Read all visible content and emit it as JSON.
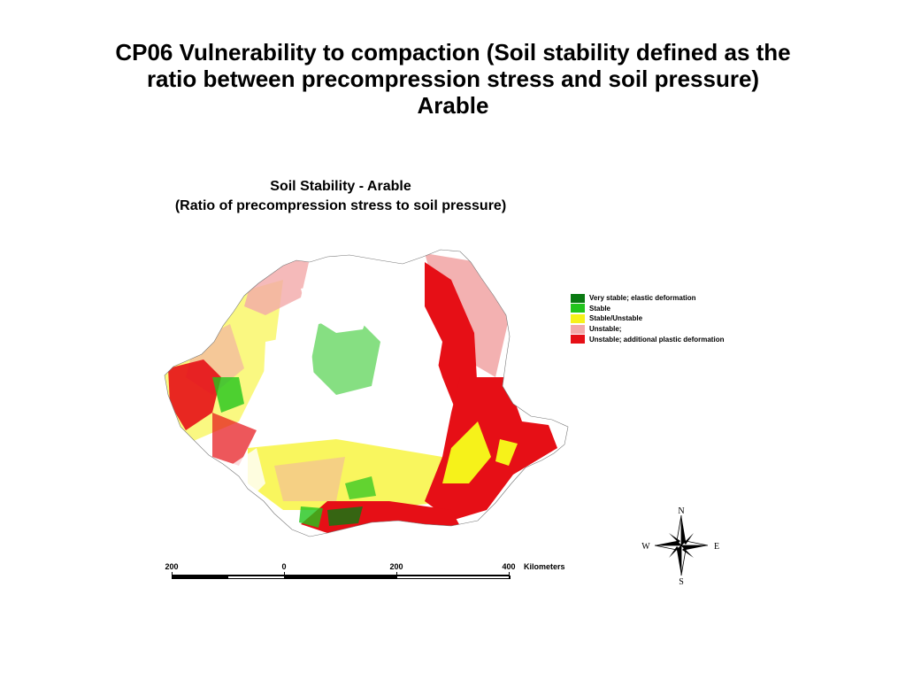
{
  "slide": {
    "title_line1": "CP06 Vulnerability to compaction (Soil stability defined as the",
    "title_line2": "ratio between precompression stress and soil pressure)",
    "title_line3": "Arable"
  },
  "map": {
    "title_line1": "Soil Stability - Arable",
    "title_line2": "(Ratio of precompression stress to soil pressure)",
    "legend": [
      {
        "label": "Very stable; elastic deformation",
        "color": "#0a7a12"
      },
      {
        "label": "Stable",
        "color": "#22c51c"
      },
      {
        "label": "Stable/Unstable",
        "color": "#f6f21a"
      },
      {
        "label": "Unstable;",
        "color": "#f2a9a9"
      },
      {
        "label": "Unstable; additional plastic deformation",
        "color": "#e60f16"
      }
    ],
    "scale_bar": {
      "labels": [
        "200",
        "0",
        "200",
        "400"
      ],
      "units": "Kilometers"
    },
    "compass": {
      "n": "N",
      "s": "S",
      "e": "E",
      "w": "W"
    }
  }
}
